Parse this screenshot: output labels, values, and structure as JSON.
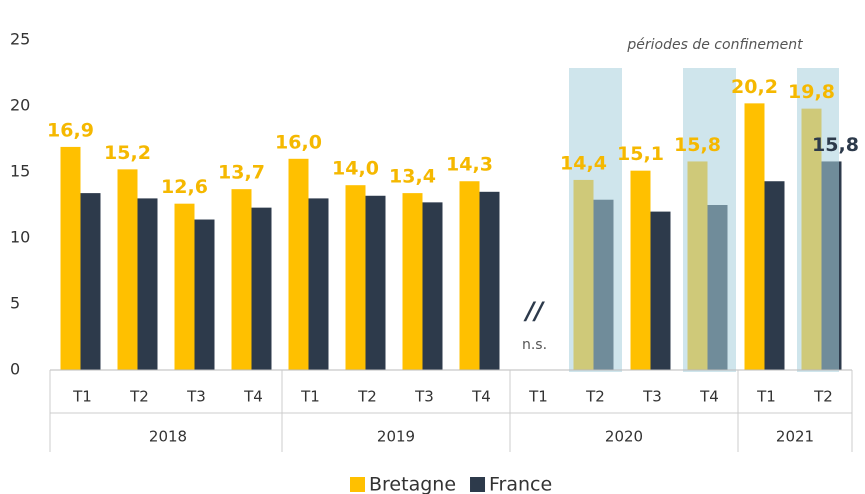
{
  "chart_data": {
    "type": "bar",
    "categories": [
      "T1",
      "T2",
      "T3",
      "T4",
      "T1",
      "T2",
      "T3",
      "T4",
      "T1",
      "T2",
      "T3",
      "T4",
      "T1",
      "T2"
    ],
    "groups": [
      {
        "name": "2018",
        "count": 4
      },
      {
        "name": "2019",
        "count": 4
      },
      {
        "name": "2020",
        "count": 4
      },
      {
        "name": "2021",
        "count": 2
      }
    ],
    "series": [
      {
        "name": "Bretagne",
        "color": "#ffc000",
        "values": [
          16.9,
          15.2,
          12.6,
          13.7,
          16.0,
          14.0,
          13.4,
          14.3,
          null,
          14.4,
          15.1,
          15.8,
          20.2,
          19.8
        ],
        "value_labels": [
          "16,9",
          "15,2",
          "12,6",
          "13,7",
          "16,0",
          "14,0",
          "13,4",
          "14,3",
          null,
          "14,4",
          "15,1",
          "15,8",
          "20,2",
          "19,8"
        ],
        "label_color": "#f5b800"
      },
      {
        "name": "France",
        "color": "#2d3a4b",
        "values": [
          13.4,
          13.0,
          11.4,
          12.3,
          13.0,
          13.2,
          12.7,
          13.5,
          null,
          12.9,
          12.0,
          12.5,
          14.3,
          15.8
        ],
        "value_labels": [
          null,
          null,
          null,
          null,
          null,
          null,
          null,
          null,
          null,
          null,
          null,
          null,
          null,
          "15,8"
        ],
        "label_color": "#2d3a4b"
      }
    ],
    "ylim": [
      0,
      25
    ],
    "yticks": [
      0,
      5,
      10,
      15,
      20,
      25
    ],
    "grid": false,
    "legend": "bottom",
    "shaded_categories": [
      9,
      11,
      13
    ],
    "shade_color": "#a8d0dc",
    "annotations": {
      "shade": "périodes de confinement",
      "missing": "n.s.",
      "break": "//"
    },
    "missing_category": 8
  }
}
